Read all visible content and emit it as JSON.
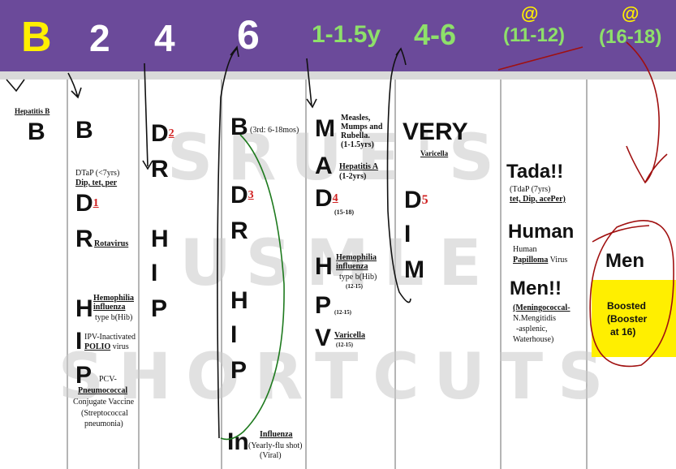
{
  "header": {
    "ages": [
      "B",
      "2",
      "4",
      "6",
      "1-1.5y",
      "4-6",
      "(11-12)",
      "(16-18)"
    ],
    "at1": "@",
    "at2": "@",
    "colors": {
      "bar": "#6b4a9a",
      "birth": "#ffef00",
      "months": "#ffffff",
      "years": "#8ee06a"
    }
  },
  "watermark": {
    "line1": "SRUE'S",
    "line2": "USMLE",
    "line3": "SHORTCUTS"
  },
  "col1": {
    "label": "Hepatitis B",
    "letter": "B"
  },
  "col2": {
    "b": "B",
    "dtap": "DTaP (<7yrs)",
    "dip": "Dip, tet, per",
    "d": "D",
    "d_sup": "1",
    "r": "R",
    "rota": "Rotavirus",
    "h": "H",
    "hemo1": "Hemophilia",
    "hemo2": "influenza",
    "hemo3": "type b(Hib)",
    "i": "I",
    "ipv": "IPV-Inactivated",
    "polio": "POLIO",
    "virus": "virus",
    "p": "P",
    "pcv": "PCV-",
    "pneumo": "Pneumococcal",
    "conj": "Conjugate Vaccine",
    "strep1": "(Streptococcal",
    "strep2": "pneumonia)"
  },
  "col3": {
    "d": "D",
    "d_sup": "2",
    "r": "R",
    "h": "H",
    "i": "I",
    "p": "P"
  },
  "col4": {
    "b": "B",
    "b_note": "(3rd: 6-18mos)",
    "d": "D",
    "d_sup": "3",
    "r": "R",
    "h": "H",
    "i": "I",
    "p": "P",
    "in": "In",
    "flu": "Influenza",
    "flu2": "(Yearly-flu shot)",
    "flu3": "(Viral)"
  },
  "col5": {
    "m": "M",
    "mmr1": "Measles,",
    "mmr2": "Mumps and",
    "mmr3": "Rubella.",
    "mmr4": "(1-1.5yrs)",
    "a": "A",
    "hepa": "Hepatitis A",
    "hepa2": "(1-2yrs)",
    "d": "D",
    "d_sup": "4",
    "d_note": "(15-18)",
    "h": "H",
    "hemo1": "Hemophilia",
    "hemo2": "influenza",
    "hemo3": "type b(Hib)",
    "hemo4": "(12-15)",
    "p": "P",
    "p_note": "(12-15)",
    "v": "V",
    "vari": "Varicella",
    "v_note": "(12-15)"
  },
  "col6": {
    "very": "VERY",
    "vari": "Varicella",
    "d": "D",
    "d_sup": "5",
    "i": "I",
    "m": "M"
  },
  "col7": {
    "tada": "Tada!!",
    "tdap": "(TdaP (7yrs)",
    "tdap2": "tet, Dip, acePer)",
    "human": "Human",
    "hpv1": "Human",
    "hpv2": "Papilloma",
    "hpv3": "Virus",
    "men": "Men!!",
    "mening": "(Meningococcal-",
    "men2": "N.Mengitidis",
    "men3": "-asplenic,",
    "men4": "Waterhouse)"
  },
  "col8": {
    "men": "Men",
    "boost1": "Boosted",
    "boost2": "(Booster",
    "boost3": "at 16)"
  }
}
